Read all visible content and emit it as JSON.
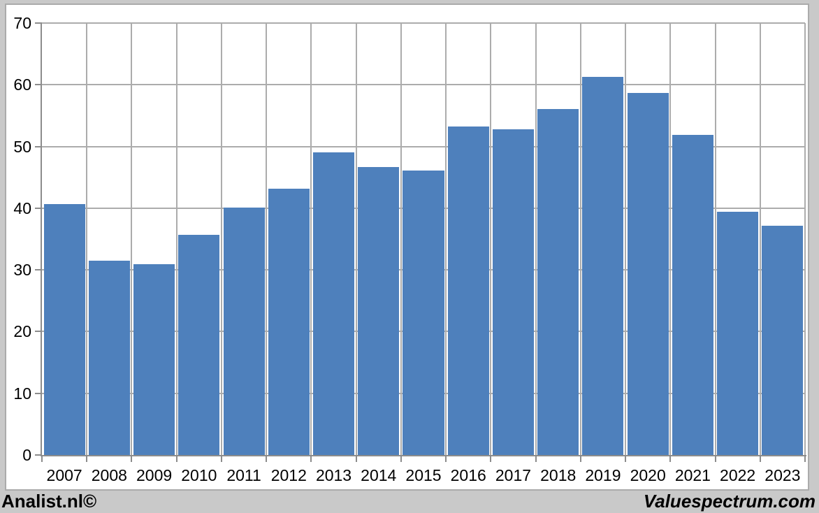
{
  "branding": {
    "left_label": "Analist.nl©",
    "right_label": "Valuespectrum.com"
  },
  "colors": {
    "bar_fill": "#4E80BC",
    "gridline": "#ACACAC",
    "axis_line": "#8C8C8C",
    "panel_background": "#FFFFFF",
    "panel_border": "#ABABAB",
    "page_background": "#C9C9C9",
    "label_text": "#000000"
  },
  "chart_data": {
    "type": "bar",
    "categories": [
      "2007",
      "2008",
      "2009",
      "2010",
      "2011",
      "2012",
      "2013",
      "2014",
      "2015",
      "2016",
      "2017",
      "2018",
      "2019",
      "2020",
      "2021",
      "2022",
      "2023"
    ],
    "values": [
      40.7,
      31.5,
      30.9,
      35.7,
      40.1,
      43.2,
      49.1,
      46.7,
      46.1,
      53.2,
      52.8,
      56.1,
      61.3,
      58.7,
      51.9,
      39.4,
      37.1
    ],
    "xlabel": "",
    "ylabel": "",
    "ylim": [
      0,
      70
    ],
    "yticks": [
      0,
      10,
      20,
      30,
      40,
      50,
      60,
      70
    ],
    "grid": true,
    "legend_position": "none"
  }
}
